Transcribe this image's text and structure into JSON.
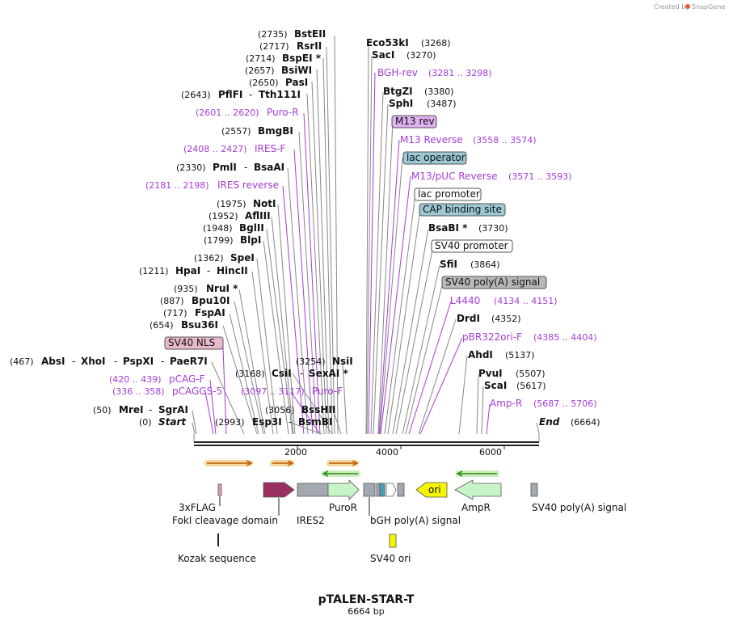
{
  "credit": {
    "prefix": "Created by",
    "brand": "SnapGene"
  },
  "title": "pTALEN-STAR-T",
  "subtitle": "6664 bp",
  "ticks": [
    "2000",
    "4000",
    "6000"
  ],
  "sites": [
    {
      "name": "BstEII",
      "pos": "(2735)"
    },
    {
      "name": "RsrII",
      "pos": "(2717)"
    },
    {
      "name": "BspEI *",
      "pos": "(2714)"
    },
    {
      "name": "BsiWI",
      "pos": "(2657)"
    },
    {
      "name": "PasI",
      "pos": "(2650)"
    },
    {
      "name": "PflFI",
      "pos": "(2643)",
      "name2": "Tth111I"
    },
    {
      "name": "BmgBI",
      "pos": "(2557)"
    },
    {
      "name": "PmlI",
      "pos": "(2330)",
      "name2": "BsaAI"
    },
    {
      "name": "NotI",
      "pos": "(1975)"
    },
    {
      "name": "AflIII",
      "pos": "(1952)"
    },
    {
      "name": "BglII",
      "pos": "(1948)"
    },
    {
      "name": "BlpI",
      "pos": "(1799)"
    },
    {
      "name": "SpeI",
      "pos": "(1362)"
    },
    {
      "name": "HpaI",
      "pos": "(1211)",
      "name2": "HincII"
    },
    {
      "name": "NruI *",
      "pos": "(935)"
    },
    {
      "name": "Bpu10I",
      "pos": "(887)"
    },
    {
      "name": "FspAI",
      "pos": "(717)"
    },
    {
      "name": "Bsu36I",
      "pos": "(654)"
    },
    {
      "name": "AbsI",
      "pos": "(467)",
      "name2": "XhoI",
      "name3": "PspXI",
      "name4": "PaeR7I"
    },
    {
      "name": "MreI",
      "pos": "(50)",
      "name2": "SgrAI"
    },
    {
      "name": "Start",
      "pos": "(0)"
    },
    {
      "name": "Esp3I",
      "pos": "(2993)",
      "name2": "BsmBI"
    },
    {
      "name": "CsiI",
      "pos": "(3168)",
      "name2": "SexAI *"
    },
    {
      "name": "NsiI",
      "pos": "(3254)"
    },
    {
      "name": "BssHII",
      "pos": "(3056)"
    },
    {
      "name": "Eco53kI",
      "pos": "(3268)"
    },
    {
      "name": "SacI",
      "pos": "(3270)"
    },
    {
      "name": "BtgZI",
      "pos": "(3380)"
    },
    {
      "name": "SphI",
      "pos": "(3487)"
    },
    {
      "name": "BsaBI *",
      "pos": "(3730)"
    },
    {
      "name": "SfiI",
      "pos": "(3864)"
    },
    {
      "name": "DrdI",
      "pos": "(4352)"
    },
    {
      "name": "AhdI",
      "pos": "(5137)"
    },
    {
      "name": "PvuI",
      "pos": "(5507)"
    },
    {
      "name": "ScaI",
      "pos": "(5617)"
    },
    {
      "name": "End",
      "pos": "(6664)"
    }
  ],
  "primers": [
    {
      "name": "Puro-R",
      "range": "(2601 .. 2620)"
    },
    {
      "name": "IRES-F",
      "range": "(2408 .. 2427)"
    },
    {
      "name": "IRES reverse",
      "range": "(2181 .. 2198)"
    },
    {
      "name": "pCAG-F",
      "range": "(420 .. 439)"
    },
    {
      "name": "pCAGGS-5",
      "range": "(336 .. 358)"
    },
    {
      "name": "Puro-F",
      "range": "(3097 .. 3117)"
    },
    {
      "name": "BGH-rev",
      "range": "(3281 .. 3298)"
    },
    {
      "name": "M13 Reverse",
      "range": "(3558 .. 3574)"
    },
    {
      "name": "M13/pUC Reverse",
      "range": "(3571 .. 3593)"
    },
    {
      "name": "L4440",
      "range": "(4134 .. 4151)"
    },
    {
      "name": "pBR322ori-F",
      "range": "(4385 .. 4404)"
    },
    {
      "name": "Amp-R",
      "range": "(5687 .. 5706)"
    }
  ],
  "boxed": [
    {
      "name": "SV40 NLS",
      "fill": "#e8b8cc"
    },
    {
      "name": "M13 rev",
      "fill": "#e0b0f0"
    },
    {
      "name": "lac operator",
      "fill": "#9cc8d4"
    },
    {
      "name": "lac promoter",
      "fill": "#ffffff"
    },
    {
      "name": "CAP binding site",
      "fill": "#9cc8d4"
    },
    {
      "name": "SV40 promoter",
      "fill": "#ffffff"
    },
    {
      "name": "SV40 poly(A) signal",
      "fill": "#b8b8b8"
    }
  ],
  "features": [
    {
      "name": "3xFLAG"
    },
    {
      "name": "FokI cleavage domain"
    },
    {
      "name": "IRES2"
    },
    {
      "name": "PuroR"
    },
    {
      "name": "bGH poly(A) signal"
    },
    {
      "name": "ori"
    },
    {
      "name": "AmpR"
    },
    {
      "name": "SV40 poly(A) signal"
    },
    {
      "name": "Kozak sequence"
    },
    {
      "name": "SV40 ori"
    }
  ],
  "colors": {
    "primer": "#a53bd6",
    "backbone": "#222222",
    "fokI": "#9a2f62",
    "gray_feature": "#a3a9b0",
    "puroR": "#c8f5c8",
    "ori": "#f5f500",
    "ampR": "#c8f5c8",
    "primer_arrow_orange": "#f0a020",
    "primer_arrow_green": "#2a8a10"
  }
}
